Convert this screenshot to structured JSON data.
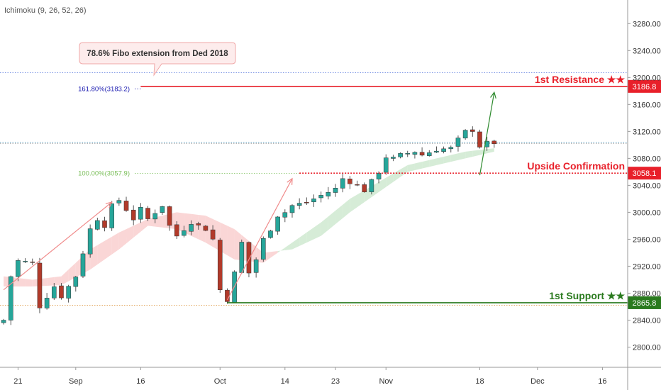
{
  "indicator_label": "Ichimoku (9, 26, 52, 26)",
  "callout_text": "78.6% Fibo extension from Ded 2018",
  "chart_data": {
    "type": "candlestick",
    "y_axis": {
      "ticks": [
        "2800.00",
        "2840.00",
        "2880.00",
        "2920.00",
        "2960.00",
        "3000.00",
        "3040.00",
        "3080.00",
        "3120.00",
        "3160.00",
        "3200.00",
        "3240.00",
        "3280.00"
      ],
      "tick_values": [
        2800,
        2840,
        2880,
        2920,
        2960,
        3000,
        3040,
        3080,
        3120,
        3160,
        3200,
        3240,
        3280
      ],
      "range": [
        2770,
        3315
      ],
      "side": "right"
    },
    "x_axis": {
      "labels": [
        "21",
        "Sep",
        "16",
        "Oct",
        "14",
        "23",
        "Nov",
        "18",
        "Dec",
        "16"
      ],
      "label_index": [
        2,
        10,
        19,
        30,
        39,
        46,
        53,
        66,
        74,
        83
      ],
      "num_bars": 87
    },
    "price_path": {
      "index": [
        0,
        1,
        2,
        4,
        5,
        6,
        7,
        8,
        10,
        12,
        13,
        14,
        15,
        16,
        18,
        19,
        20,
        22,
        23,
        24,
        26,
        28,
        29,
        30,
        31,
        32,
        33,
        34,
        35,
        36,
        37,
        38,
        39,
        40,
        42,
        44,
        46,
        47,
        48,
        49,
        50,
        52,
        53,
        54,
        55,
        57,
        58,
        60,
        62,
        63,
        64,
        65,
        66,
        67,
        68
      ],
      "close": [
        2840,
        2905,
        2928,
        2925,
        2860,
        2875,
        2890,
        2875,
        2905,
        2975,
        2990,
        2980,
        3010,
        3018,
        2990,
        3005,
        2990,
        3010,
        2980,
        2965,
        2985,
        2975,
        2960,
        2885,
        2870,
        2910,
        2955,
        2910,
        2930,
        2960,
        2975,
        2995,
        3000,
        3010,
        3015,
        3025,
        3035,
        3050,
        3045,
        3040,
        3032,
        3060,
        3082,
        3080,
        3085,
        3090,
        3085,
        3093,
        3095,
        3108,
        3120,
        3122,
        3098,
        3103,
        3103
      ]
    },
    "ichimoku_cloud": {
      "index": [
        0,
        4,
        8,
        12,
        16,
        20,
        24,
        28,
        32,
        36,
        40,
        44,
        48,
        52,
        56,
        60,
        64,
        68
      ],
      "span_a": [
        2890,
        2890,
        2892,
        2915,
        2945,
        2980,
        2975,
        2955,
        2930,
        2925,
        2955,
        2985,
        3020,
        3045,
        3070,
        3080,
        3090,
        3095
      ],
      "span_b": [
        2905,
        2900,
        2905,
        2945,
        2970,
        2990,
        3000,
        2995,
        2975,
        2940,
        2945,
        2965,
        3000,
        3030,
        3060,
        3070,
        3080,
        3090
      ]
    },
    "levels": [
      {
        "name": "1st Resistance ★★",
        "value": 3186.8,
        "badge": "3186.8",
        "color": "#e8202a",
        "start_index": 19
      },
      {
        "name": "Upside Confirmation",
        "value": 3058.1,
        "badge": "3058.1",
        "color": "#e8202a",
        "start_index": 41
      },
      {
        "name": "1st Support ★★",
        "value": 2865.8,
        "badge": "2865.8",
        "color": "#2a7a1e",
        "start_index": 31
      }
    ],
    "fib_labels": [
      {
        "text": "161.80%(3183.2)",
        "value": 3183.2,
        "color": "#1a1ab0"
      },
      {
        "text": "100.00%(3057.9)",
        "value": 3057.9,
        "color": "#7bbf5a"
      }
    ],
    "reference_lines": [
      {
        "value": 3207,
        "color": "#5577dd"
      },
      {
        "value": 3104,
        "color": "#5599bb"
      },
      {
        "value": 3102,
        "color": "#aaaaaa"
      },
      {
        "value": 2862,
        "color": "#e0a050"
      }
    ],
    "arrows": [
      {
        "from": [
          0,
          2885
        ],
        "to": [
          15,
          3015
        ],
        "color": "#f08a8a"
      },
      {
        "from": [
          31,
          2870
        ],
        "to": [
          40,
          3050
        ],
        "color": "#f08a8a"
      },
      {
        "from": [
          66,
          3055
        ],
        "to": [
          68,
          3178
        ],
        "color": "#2e8a2e"
      }
    ],
    "colors": {
      "up": "#26a69a",
      "down": "#b23a2a",
      "cloud_bull": "#c8e6c9",
      "cloud_bear": "#f8c8c8"
    }
  }
}
